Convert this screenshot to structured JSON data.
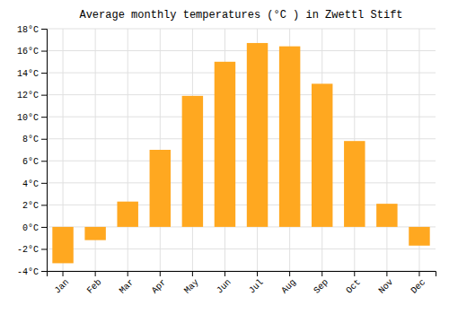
{
  "chart_data": {
    "type": "bar",
    "title": "Average monthly temperatures (°C ) in Zwettl Stift",
    "categories": [
      "Jan",
      "Feb",
      "Mar",
      "Apr",
      "May",
      "Jun",
      "Jul",
      "Aug",
      "Sep",
      "Oct",
      "Nov",
      "Dec"
    ],
    "values": [
      -3.3,
      -1.2,
      2.3,
      7.0,
      11.9,
      15.0,
      16.7,
      16.4,
      13.0,
      7.8,
      2.1,
      -1.7
    ],
    "color": "#FFA820",
    "ylim": [
      -4,
      18
    ],
    "yticks": [
      {
        "value": -4,
        "label": "-4°C"
      },
      {
        "value": -2,
        "label": "-2°C"
      },
      {
        "value": 0,
        "label": "0°C"
      },
      {
        "value": 2,
        "label": "2°C"
      },
      {
        "value": 4,
        "label": "4°C"
      },
      {
        "value": 6,
        "label": "6°C"
      },
      {
        "value": 8,
        "label": "8°C"
      },
      {
        "value": 10,
        "label": "10°C"
      },
      {
        "value": 12,
        "label": "12°C"
      },
      {
        "value": 14,
        "label": "14°C"
      },
      {
        "value": 16,
        "label": "16°C"
      },
      {
        "value": 18,
        "label": "18°C"
      }
    ],
    "grid": true
  }
}
